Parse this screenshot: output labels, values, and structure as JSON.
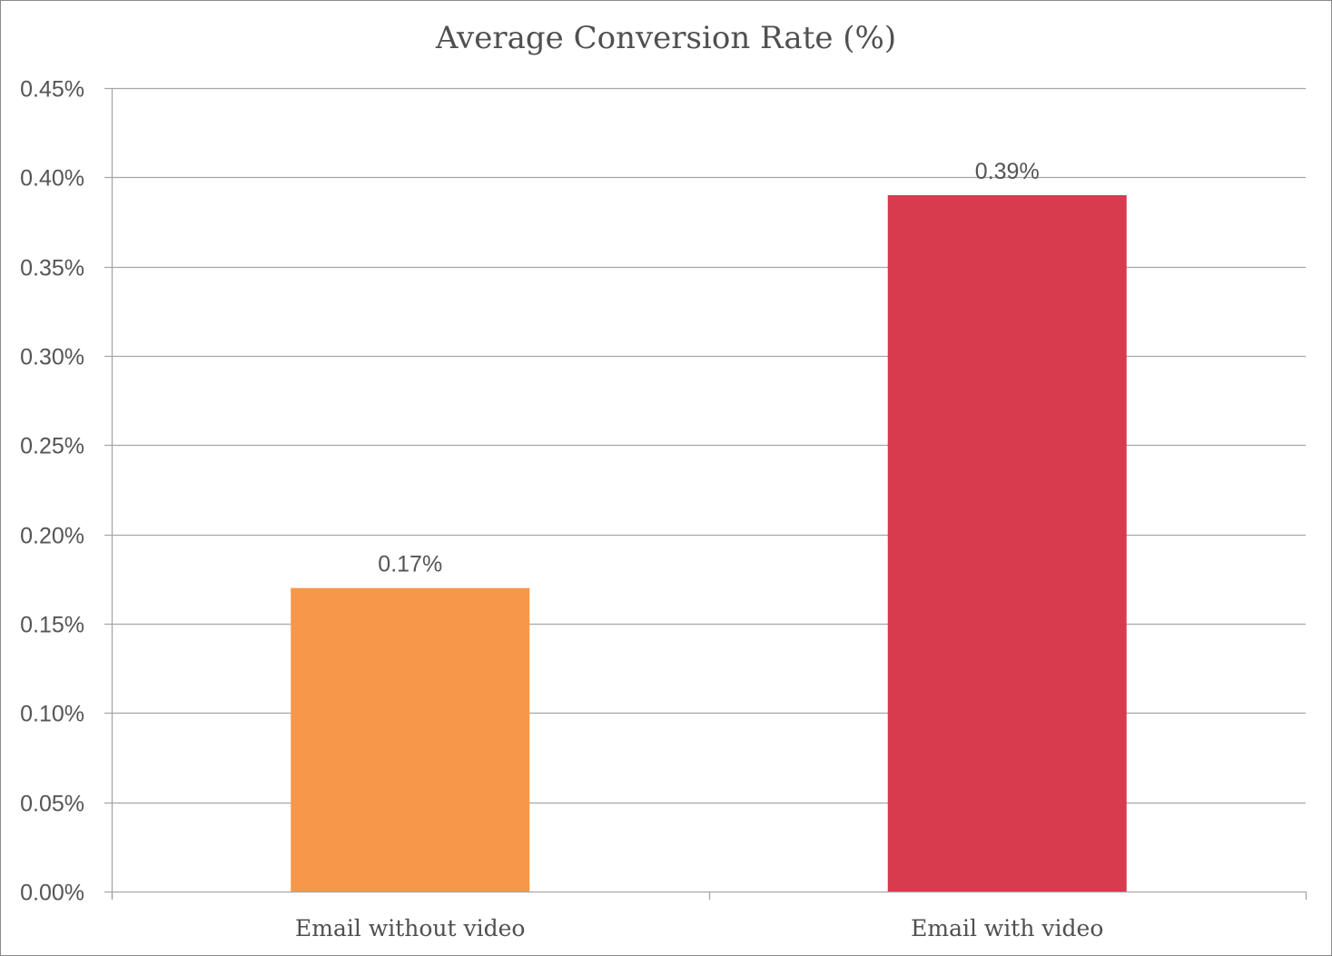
{
  "chart_data": {
    "type": "bar",
    "title": "Average Conversion Rate (%)",
    "xlabel": "",
    "ylabel": "",
    "categories": [
      "Email without video",
      "Email with video"
    ],
    "values": [
      0.17,
      0.39
    ],
    "data_labels": [
      "0.17%",
      "0.39%"
    ],
    "bar_colors": [
      "#f6974a",
      "#d83a4e"
    ],
    "ylim": [
      0,
      0.45
    ],
    "y_ticks": [
      0,
      0.05,
      0.1,
      0.15,
      0.2,
      0.25,
      0.3,
      0.35,
      0.4,
      0.45
    ],
    "y_tick_labels": [
      "0.00%",
      "0.05%",
      "0.10%",
      "0.15%",
      "0.20%",
      "0.25%",
      "0.30%",
      "0.35%",
      "0.40%",
      "0.45%"
    ],
    "grid": true,
    "legend": "none"
  }
}
